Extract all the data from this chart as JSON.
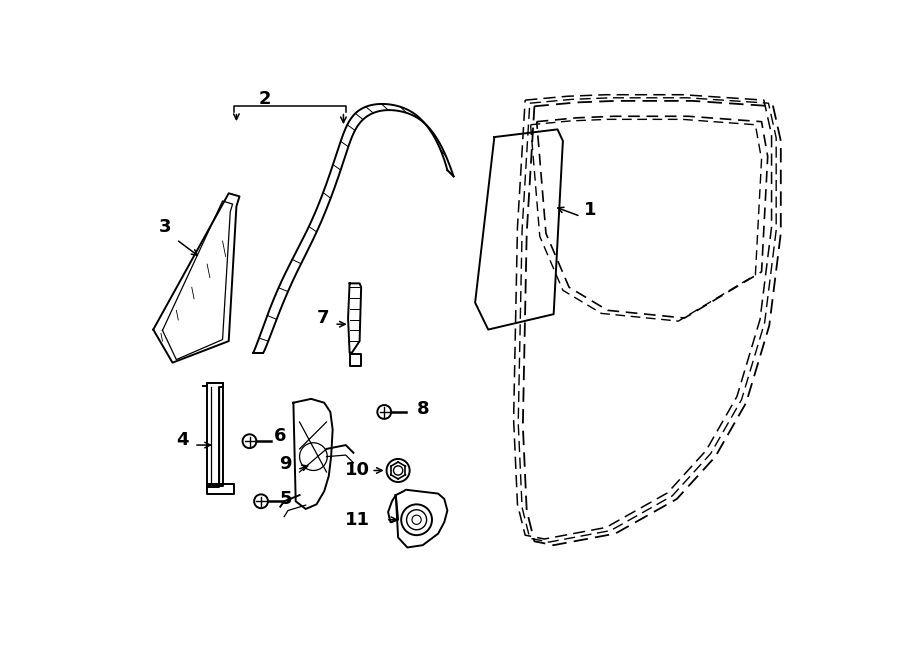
{
  "bg_color": "#ffffff",
  "lc": "#000000",
  "lw_main": 1.4,
  "lw_thin": 0.9,
  "dash_pattern": [
    8,
    4
  ],
  "dash_pattern2": [
    5,
    3
  ],
  "label_fontsize": 13,
  "label_fontweight": "bold"
}
